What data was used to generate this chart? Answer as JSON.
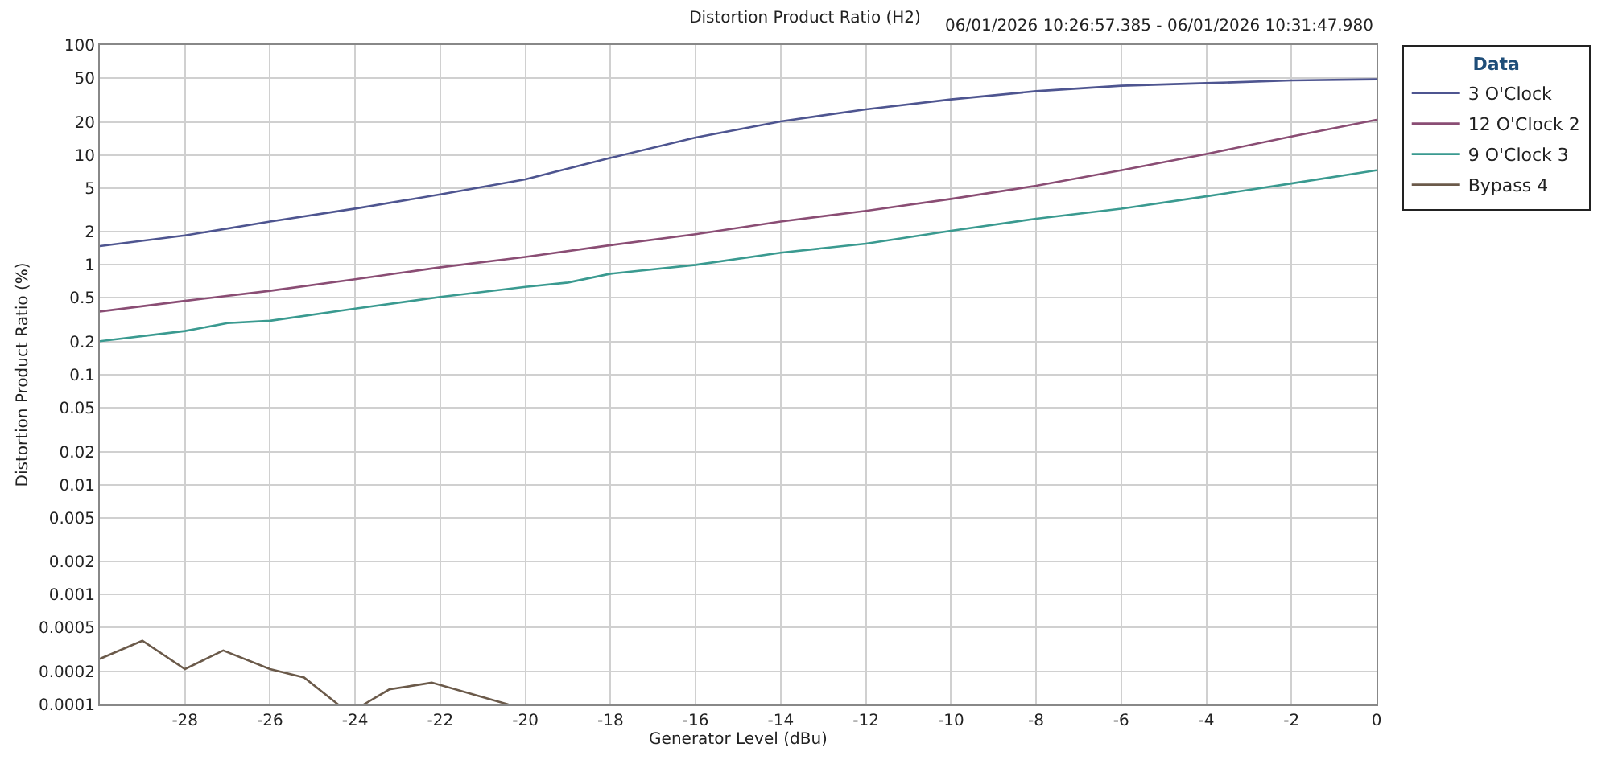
{
  "chart_data": {
    "type": "line",
    "title": "Distortion Product Ratio (H2)",
    "subtitle": "06/01/2026 10:26:57.385 - 06/01/2026 10:31:47.980",
    "xlabel": "Generator Level (dBu)",
    "ylabel": "Distortion Product Ratio (%)",
    "legend_title": "Data",
    "log": "y",
    "grid": true,
    "legend": "top right",
    "marker": "none",
    "line_style": "solid",
    "xlim": [
      -30,
      0
    ],
    "xticks": [
      -28,
      -26,
      -24,
      -22,
      -20,
      -18,
      -16,
      -14,
      -12,
      -10,
      -8,
      -6,
      -4,
      -2,
      0
    ],
    "ylim": [
      0.0001,
      100
    ],
    "yticks": [
      100,
      50,
      20,
      10,
      5,
      2,
      1,
      0.5,
      0.2,
      0.1,
      0.05,
      0.02,
      0.01,
      0.005,
      0.002,
      0.001,
      0.0005,
      0.0002,
      0.0001
    ],
    "series": [
      {
        "name": "3 O'Clock",
        "color": "#4e5590",
        "x": [
          -30,
          -28,
          -26,
          -24,
          -22,
          -20,
          -18,
          -16,
          -14,
          -12,
          -10,
          -8,
          -6,
          -4,
          -2,
          0
        ],
        "values": [
          1.48,
          1.85,
          2.48,
          3.25,
          4.37,
          6.0,
          9.4,
          14.4,
          20.2,
          26,
          32,
          38,
          42.6,
          45,
          47.6,
          48.8
        ]
      },
      {
        "name": "12 O'Clock 2",
        "color": "#8a4d74",
        "x": [
          -30,
          -28,
          -26,
          -24,
          -22,
          -20,
          -18,
          -16,
          -14,
          -12,
          -10,
          -8,
          -6,
          -4,
          -2,
          0
        ],
        "values": [
          0.376,
          0.47,
          0.58,
          0.74,
          0.95,
          1.18,
          1.51,
          1.9,
          2.48,
          3.1,
          3.98,
          5.24,
          7.25,
          10.2,
          14.7,
          20.9
        ]
      },
      {
        "name": "9 O'Clock 3",
        "color": "#3a9a90",
        "x": [
          -30,
          -28,
          -27,
          -26,
          -24,
          -22,
          -20,
          -19,
          -18,
          -16,
          -14,
          -12,
          -10,
          -8,
          -6,
          -4,
          -2,
          0
        ],
        "values": [
          0.202,
          0.25,
          0.295,
          0.31,
          0.4,
          0.51,
          0.63,
          0.69,
          0.83,
          1.0,
          1.29,
          1.56,
          2.04,
          2.63,
          3.24,
          4.2,
          5.5,
          7.25
        ]
      },
      {
        "name": "Bypass 4",
        "color": "#6b5a4a",
        "x": [
          -30,
          -29,
          -28,
          -27.1,
          -26,
          -25.2,
          -24.4,
          -24.1,
          -23.8,
          -23.2,
          -22.2,
          -20.4
        ],
        "values": [
          0.00026,
          0.00038,
          0.00021,
          0.00031,
          0.00021,
          0.000176,
          0.0001,
          null,
          0.0001,
          0.000137,
          0.000158,
          0.0001
        ]
      }
    ]
  }
}
